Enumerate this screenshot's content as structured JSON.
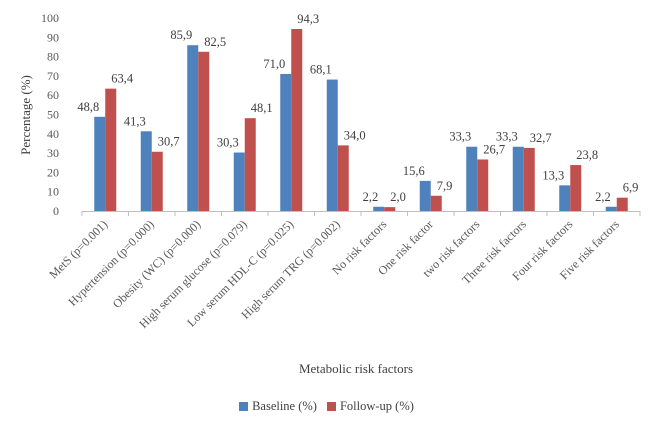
{
  "chart_data": {
    "type": "bar",
    "categories": [
      "MetS (p=0.001)",
      "Hypertension (p=0.000)",
      "Obesity (WC) (p=0.000)",
      "High serum glucose (p=0.079)",
      "Low serum HDL-C (p=0.025)",
      "High serum TRG (p=0.002)",
      "No risk factors",
      "One risk factor",
      "two risk factors",
      "Three risk factors",
      "Four risk factors",
      "Five risk factors"
    ],
    "series": [
      {
        "name": "Baseline (%)",
        "color": "#4f81bd",
        "values": [
          48.8,
          41.3,
          85.9,
          30.3,
          71.0,
          68.1,
          2.2,
          15.6,
          33.3,
          33.3,
          13.3,
          2.2
        ],
        "labels": [
          "48,8",
          "41,3",
          "85,9",
          "30,3",
          "71,0",
          "68,1",
          "2,2",
          "15,6",
          "33,3",
          "33,3",
          "13,3",
          "2,2"
        ]
      },
      {
        "name": "Follow-up (%)",
        "color": "#c0504d",
        "values": [
          63.4,
          30.7,
          82.5,
          48.1,
          94.3,
          34.0,
          2.0,
          7.9,
          26.7,
          32.7,
          23.8,
          6.9
        ],
        "labels": [
          "63,4",
          "30,7",
          "82,5",
          "48,1",
          "94,3",
          "34,0",
          "2,0",
          "7,9",
          "26,7",
          "32,7",
          "23,8",
          "6,9"
        ]
      }
    ],
    "xlabel": "Metabolic risk factors",
    "ylabel": "Percentage (%)",
    "ylim": [
      0,
      100
    ],
    "yticks": [
      "0",
      "10",
      "20",
      "30",
      "40",
      "50",
      "60",
      "70",
      "80",
      "90",
      "100"
    ],
    "grid": false,
    "legend_position": "bottom"
  }
}
